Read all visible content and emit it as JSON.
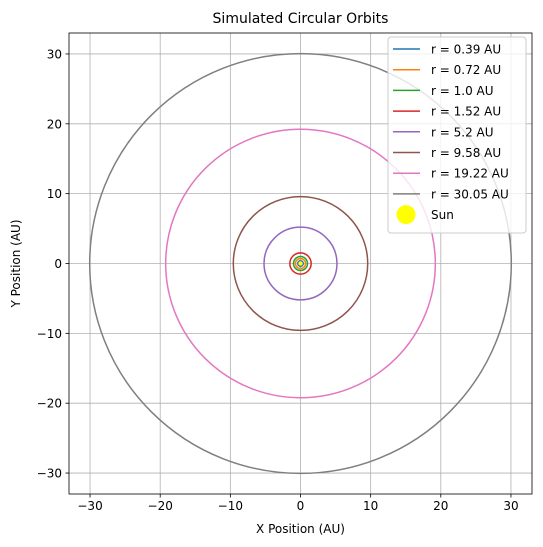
{
  "chart_data": {
    "type": "line",
    "title": "Simulated Circular Orbits",
    "xlabel": "X Position (AU)",
    "ylabel": "Y Position (AU)",
    "xlim": [
      -33.0,
      33.0
    ],
    "ylim": [
      -33.0,
      33.0
    ],
    "xticks": [
      -30,
      -20,
      -10,
      0,
      10,
      20,
      30
    ],
    "yticks": [
      -30,
      -20,
      -10,
      0,
      10,
      20,
      30
    ],
    "tick_labels": [
      "−30",
      "−20",
      "−10",
      "0",
      "10",
      "20",
      "30"
    ],
    "grid": true,
    "legend_position": "top-right",
    "series": [
      {
        "name": "r = 0.39 AU",
        "radius": 0.39,
        "color": "#1f77b4"
      },
      {
        "name": "r = 0.72 AU",
        "radius": 0.72,
        "color": "#ff7f0e"
      },
      {
        "name": "r = 1.0 AU",
        "radius": 1.0,
        "color": "#2ca02c"
      },
      {
        "name": "r = 1.52 AU",
        "radius": 1.52,
        "color": "#d62728"
      },
      {
        "name": "r = 5.2 AU",
        "radius": 5.2,
        "color": "#9467bd"
      },
      {
        "name": "r = 9.58 AU",
        "radius": 9.58,
        "color": "#8c564b"
      },
      {
        "name": "r = 19.22 AU",
        "radius": 19.22,
        "color": "#e377c2"
      },
      {
        "name": "r = 30.05 AU",
        "radius": 30.05,
        "color": "#7f7f7f"
      }
    ],
    "sun": {
      "name": "Sun",
      "x": 0,
      "y": 0,
      "color": "#ffff00"
    }
  }
}
